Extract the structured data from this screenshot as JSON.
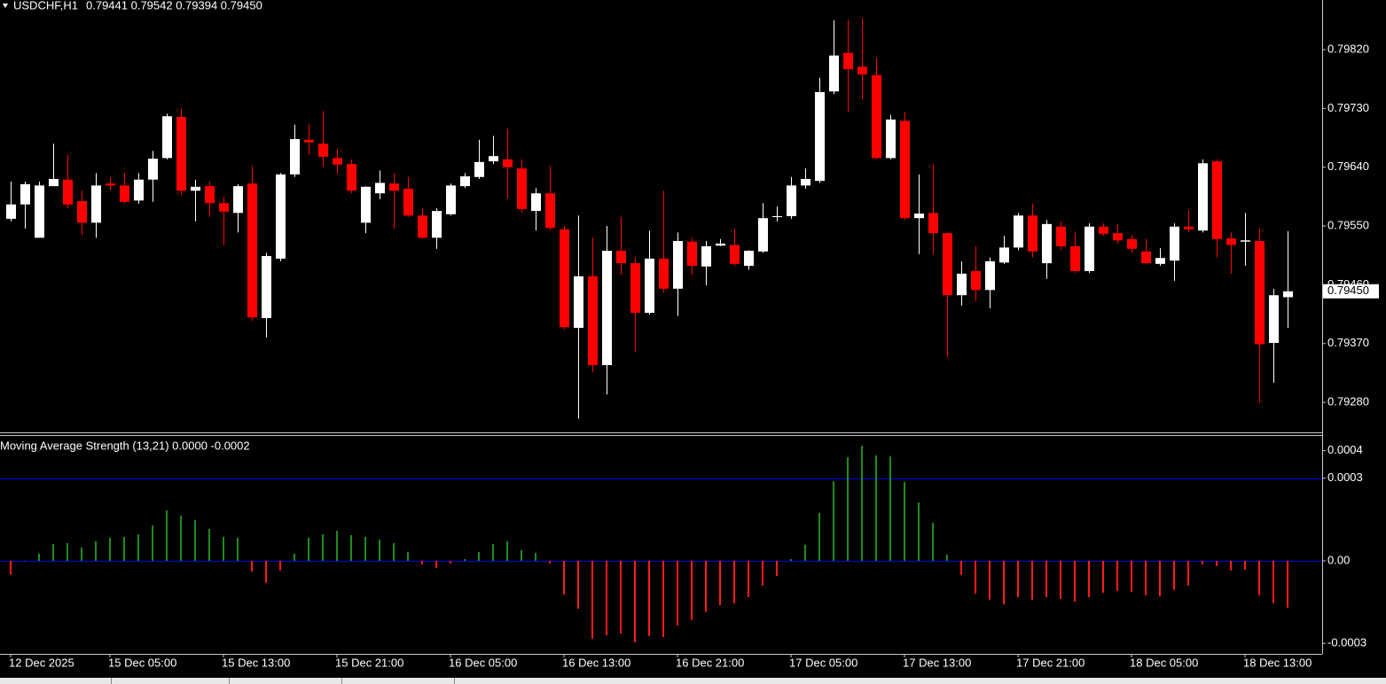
{
  "chart_data": [
    {
      "type": "candlestick",
      "title": "USDCHF,H1",
      "subtitle": "0.79441 0.79542 0.79394 0.79450",
      "categories": [
        "12 Dec 2025",
        null,
        null,
        null,
        null,
        null,
        null,
        "15 Dec 05:00",
        null,
        null,
        null,
        null,
        null,
        null,
        null,
        "15 Dec 13:00",
        null,
        null,
        null,
        null,
        null,
        null,
        null,
        "15 Dec 21:00",
        null,
        null,
        null,
        null,
        null,
        null,
        null,
        "16 Dec 05:00",
        null,
        null,
        null,
        null,
        null,
        null,
        null,
        "16 Dec 13:00",
        null,
        null,
        null,
        null,
        null,
        null,
        null,
        "16 Dec 21:00",
        null,
        null,
        null,
        null,
        null,
        null,
        null,
        "17 Dec 05:00",
        null,
        null,
        null,
        null,
        null,
        null,
        null,
        "17 Dec 13:00",
        null,
        null,
        null,
        null,
        null,
        null,
        null,
        "17 Dec 21:00",
        null,
        null,
        null,
        null,
        null,
        null,
        null,
        "18 Dec 05:00",
        null,
        null,
        null,
        null,
        null,
        null,
        null,
        "18 Dec 13:00",
        null,
        null,
        null
      ],
      "open": [
        0.79561,
        0.79583,
        0.79532,
        0.79611,
        0.79621,
        0.79588,
        0.79555,
        0.79615,
        0.79612,
        0.79589,
        0.79621,
        0.79654,
        0.79717,
        0.79604,
        0.79611,
        0.79585,
        0.7957,
        0.79615,
        0.79409,
        0.795,
        0.79629,
        0.79682,
        0.79676,
        0.79654,
        0.79645,
        0.79555,
        0.796,
        0.79615,
        0.79607,
        0.79566,
        0.79532,
        0.79568,
        0.79611,
        0.79625,
        0.79649,
        0.79652,
        0.79638,
        0.79573,
        0.796,
        0.79545,
        0.79394,
        0.79473,
        0.79337,
        0.79512,
        0.79493,
        0.79417,
        0.795,
        0.79454,
        0.79526,
        0.79488,
        0.7952,
        0.79521,
        0.79489,
        0.79511,
        0.79564,
        0.79565,
        0.79612,
        0.79619,
        0.79756,
        0.79815,
        0.79794,
        0.79781,
        0.79654,
        0.79711,
        0.79562,
        0.7957,
        0.79539,
        0.79444,
        0.79481,
        0.79452,
        0.79494,
        0.79517,
        0.79566,
        0.79493,
        0.79549,
        0.79519,
        0.79481,
        0.79549,
        0.79539,
        0.7953,
        0.79511,
        0.79492,
        0.79497,
        0.79549,
        0.79543,
        0.79649,
        0.79531,
        0.79526,
        0.79527,
        0.79371,
        0.79441
      ],
      "high": [
        0.79618,
        0.79618,
        0.79618,
        0.79676,
        0.79659,
        0.79604,
        0.79631,
        0.79625,
        0.79631,
        0.79631,
        0.79665,
        0.79722,
        0.7973,
        0.79621,
        0.79618,
        0.79595,
        0.79614,
        0.79642,
        0.79509,
        0.79631,
        0.79705,
        0.79706,
        0.79726,
        0.79668,
        0.79652,
        0.79611,
        0.79635,
        0.79631,
        0.79625,
        0.79577,
        0.79577,
        0.79615,
        0.79631,
        0.79682,
        0.79688,
        0.79699,
        0.79652,
        0.79608,
        0.79642,
        0.7955,
        0.79566,
        0.79532,
        0.7955,
        0.79564,
        0.79502,
        0.79543,
        0.79604,
        0.7954,
        0.79532,
        0.79527,
        0.7953,
        0.79546,
        0.79513,
        0.79585,
        0.7958,
        0.79625,
        0.79638,
        0.79777,
        0.79865,
        0.79866,
        0.79868,
        0.79808,
        0.7972,
        0.79725,
        0.79629,
        0.79645,
        0.7954,
        0.79496,
        0.79519,
        0.79502,
        0.79535,
        0.7957,
        0.79584,
        0.79559,
        0.79557,
        0.7954,
        0.79554,
        0.79554,
        0.79553,
        0.79536,
        0.7953,
        0.79516,
        0.79554,
        0.79574,
        0.79652,
        0.79652,
        0.7954,
        0.7957,
        0.79546,
        0.79454,
        0.79542
      ],
      "low": [
        0.79557,
        0.79546,
        0.79532,
        0.79611,
        0.79577,
        0.79536,
        0.79532,
        0.79604,
        0.79584,
        0.79584,
        0.79587,
        0.79652,
        0.79597,
        0.79557,
        0.79564,
        0.7952,
        0.7954,
        0.79405,
        0.79379,
        0.79496,
        0.79625,
        0.79659,
        0.79641,
        0.7963,
        0.796,
        0.79539,
        0.79591,
        0.79546,
        0.79564,
        0.7953,
        0.79515,
        0.79566,
        0.79608,
        0.79622,
        0.79645,
        0.79592,
        0.7957,
        0.79543,
        0.79543,
        0.79391,
        0.79255,
        0.79326,
        0.79292,
        0.79475,
        0.79357,
        0.79414,
        0.79448,
        0.79412,
        0.79475,
        0.79459,
        0.79519,
        0.79489,
        0.79483,
        0.79509,
        0.79557,
        0.79561,
        0.79607,
        0.79616,
        0.79752,
        0.79724,
        0.79744,
        0.79652,
        0.79652,
        0.79559,
        0.79507,
        0.79507,
        0.79349,
        0.79428,
        0.79435,
        0.79424,
        0.79492,
        0.79513,
        0.79502,
        0.79469,
        0.79513,
        0.79478,
        0.79478,
        0.79535,
        0.79523,
        0.79509,
        0.79492,
        0.79489,
        0.79466,
        0.7954,
        0.7954,
        0.79502,
        0.79477,
        0.79489,
        0.79279,
        0.7931,
        0.79394
      ],
      "close": [
        0.79583,
        0.79614,
        0.79612,
        0.79622,
        0.79583,
        0.79555,
        0.79612,
        0.79612,
        0.79587,
        0.79621,
        0.79653,
        0.79718,
        0.79604,
        0.7961,
        0.79585,
        0.79572,
        0.79611,
        0.7941,
        0.79504,
        0.79629,
        0.79683,
        0.79678,
        0.79656,
        0.79644,
        0.79604,
        0.7961,
        0.79616,
        0.79604,
        0.79566,
        0.79532,
        0.79573,
        0.79612,
        0.79626,
        0.79648,
        0.79657,
        0.7964,
        0.79576,
        0.796,
        0.79547,
        0.79395,
        0.79473,
        0.79337,
        0.79512,
        0.79493,
        0.79417,
        0.795,
        0.79454,
        0.79527,
        0.79489,
        0.79519,
        0.79523,
        0.79492,
        0.79512,
        0.79562,
        0.79565,
        0.79612,
        0.79622,
        0.79755,
        0.79811,
        0.7979,
        0.79782,
        0.79654,
        0.79713,
        0.79562,
        0.79569,
        0.79539,
        0.79444,
        0.79477,
        0.79452,
        0.79496,
        0.79517,
        0.79566,
        0.79511,
        0.79553,
        0.79519,
        0.79481,
        0.79549,
        0.79538,
        0.79528,
        0.79515,
        0.79493,
        0.79501,
        0.79549,
        0.79545,
        0.79646,
        0.7953,
        0.79521,
        0.79528,
        0.79369,
        0.79444,
        0.7945
      ],
      "up_color": "#ffffff",
      "down_color": "#ff0000",
      "ylim": [
        0.79234,
        0.79896
      ],
      "yticks": [
        {
          "value": 0.7928,
          "label": "0.79280"
        },
        {
          "value": 0.7937,
          "label": "0.79370"
        },
        {
          "value": 0.7946,
          "label": "0.79460"
        },
        {
          "value": 0.7955,
          "label": "0.79550"
        },
        {
          "value": 0.7964,
          "label": "0.79640"
        },
        {
          "value": 0.7973,
          "label": "0.79730"
        },
        {
          "value": 0.7982,
          "label": "0.79820"
        }
      ],
      "current_price": {
        "value": 0.7945,
        "label": "0.79450"
      }
    },
    {
      "type": "histogram_bar",
      "title": "Moving Average Strength (13,21) 0.0000 -0.0002",
      "values": [
        -5e-05,
        0,
        2.6e-05,
        6.1e-05,
        6.4e-05,
        4.8e-05,
        7.1e-05,
        8.4e-05,
        8.7e-05,
        9.6e-05,
        0.000129,
        0.000183,
        0.000164,
        0.000148,
        0.000116,
        8.7e-05,
        8.4e-05,
        -3.9e-05,
        -8e-05,
        -3.5e-05,
        2.6e-05,
        8.4e-05,
        9.6e-05,
        0.000109,
        9.3e-05,
        8.7e-05,
        7.7e-05,
        6.4e-05,
        3.2e-05,
        -1.3e-05,
        -2.6e-05,
        -1e-05,
        6e-06,
        3.2e-05,
        6.1e-05,
        7.1e-05,
        3.9e-05,
        2.9e-05,
        -1e-05,
        -0.000122,
        -0.000174,
        -0.000283,
        -0.00027,
        -0.000264,
        -0.000296,
        -0.000273,
        -0.000277,
        -0.000235,
        -0.000215,
        -0.000186,
        -0.000161,
        -0.000154,
        -0.000132,
        -9e-05,
        -5.5e-05,
        6e-06,
        5.8e-05,
        0.000174,
        0.000289,
        0.000376,
        0.000418,
        0.000383,
        0.000379,
        0.000286,
        0.000212,
        0.000138,
        2.3e-05,
        -5.1e-05,
        -0.000119,
        -0.000141,
        -0.000158,
        -0.000132,
        -0.000141,
        -0.000132,
        -0.000138,
        -0.000148,
        -0.000132,
        -0.000116,
        -0.000109,
        -0.000113,
        -0.000125,
        -0.000129,
        -0.000106,
        -9e-05,
        -1.3e-05,
        -1.9e-05,
        -3.5e-05,
        -3.2e-05,
        -0.000125,
        -0.000154,
        -0.00017
      ],
      "up_color": "#1e8c1e",
      "down_color": "#ff1a1a",
      "ylim": [
        -0.000338,
        0.00046
      ],
      "yticks": [
        {
          "value": -0.0003,
          "label": "-0.0003"
        },
        {
          "value": 0,
          "label": "0.00"
        },
        0.0003,
        0.0004
      ],
      "levels": [
        0,
        0.0003
      ],
      "level_color": "#0000e0"
    }
  ]
}
